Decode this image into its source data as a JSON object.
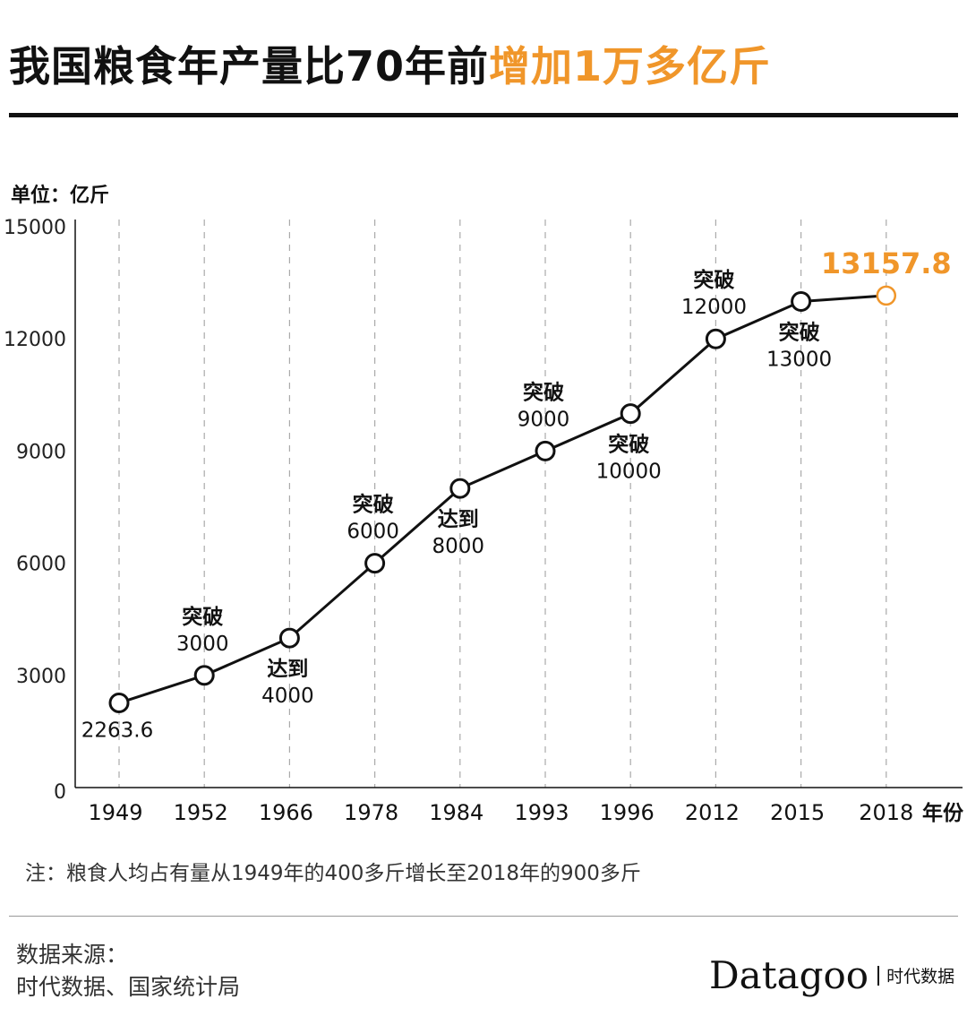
{
  "title": {
    "main": "我国粮食年产量比70年前",
    "highlight": "增加1万多亿斤"
  },
  "unit": "单位：亿斤",
  "note": "注：粮食人均占有量从1949年的400多斤增长至2018年的900多斤",
  "source": {
    "label": "数据来源：",
    "text": "时代数据、国家统计局"
  },
  "logo": {
    "brand": "Datagoo",
    "cn": "时代数据"
  },
  "colors": {
    "accent": "#f0962a",
    "line": "#111111"
  },
  "chart_data": {
    "type": "line",
    "title": "我国粮食年产量比70年前增加1万多亿斤",
    "ylabel": "单位：亿斤",
    "xlabel": "年份",
    "ylim": [
      0,
      15000
    ],
    "yticks": [
      0,
      3000,
      6000,
      9000,
      12000,
      15000
    ],
    "categories": [
      "1949",
      "1952",
      "1966",
      "1978",
      "1984",
      "1993",
      "1996",
      "2012",
      "2015",
      "2018"
    ],
    "x_suffix": "年份",
    "values": [
      2263.6,
      3000,
      4000,
      6000,
      8000,
      9000,
      10000,
      12000,
      13000,
      13157.8
    ],
    "annotations": [
      {
        "lines": [
          "2263.6"
        ],
        "pos": "below"
      },
      {
        "lines": [
          "突破",
          "3000"
        ],
        "pos": "above"
      },
      {
        "lines": [
          "达到",
          "4000"
        ],
        "pos": "below"
      },
      {
        "lines": [
          "突破",
          "6000"
        ],
        "pos": "above"
      },
      {
        "lines": [
          "达到",
          "8000"
        ],
        "pos": "below"
      },
      {
        "lines": [
          "突破",
          "9000"
        ],
        "pos": "above"
      },
      {
        "lines": [
          "突破",
          "10000"
        ],
        "pos": "below"
      },
      {
        "lines": [
          "突破",
          "12000"
        ],
        "pos": "above"
      },
      {
        "lines": [
          "突破",
          "13000"
        ],
        "pos": "below"
      },
      {
        "lines": [
          "13157.8"
        ],
        "pos": "above",
        "highlight": true
      }
    ],
    "grid": "vertical-dashed",
    "legend": "none"
  }
}
